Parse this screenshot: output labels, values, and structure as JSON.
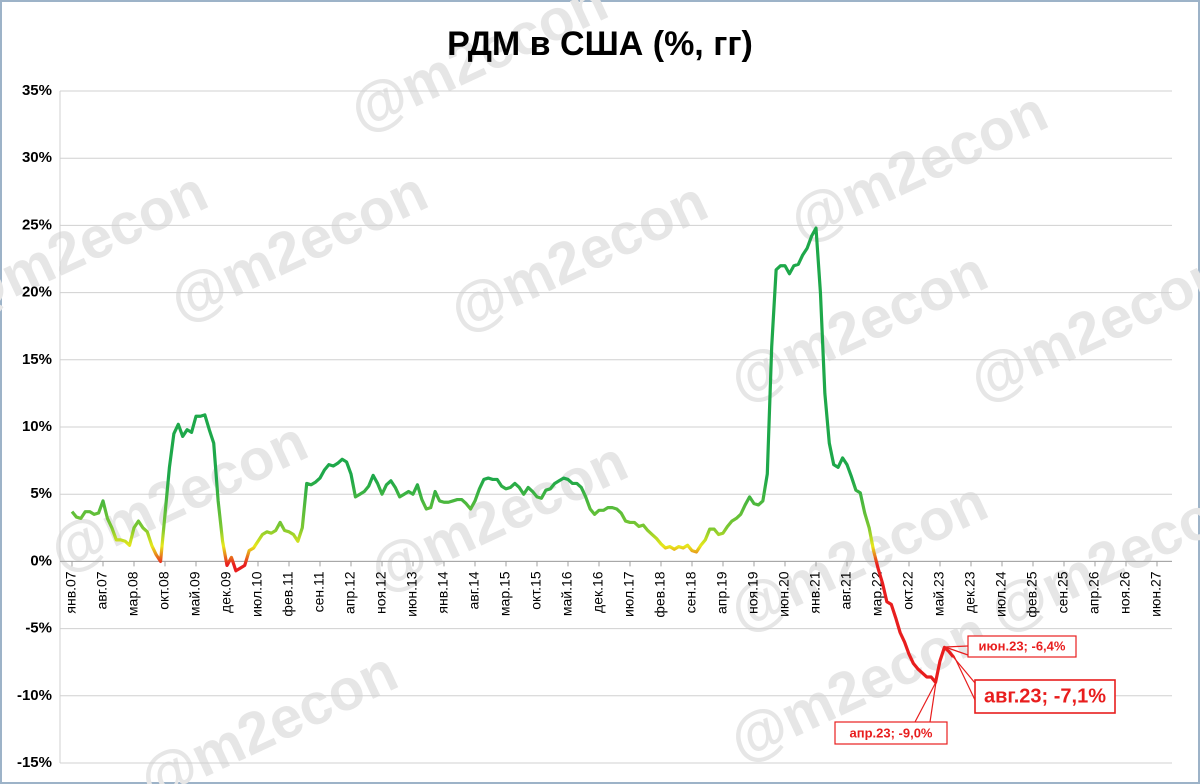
{
  "chart_data": {
    "type": "line",
    "title": "РДМ в США (%, гг)",
    "watermark": "@m2econ",
    "categories": [
      "янв.07",
      null,
      null,
      null,
      null,
      null,
      null,
      "авг.07",
      null,
      null,
      null,
      null,
      null,
      null,
      "мар.08",
      null,
      null,
      null,
      null,
      null,
      null,
      "окт.08",
      null,
      null,
      null,
      null,
      null,
      null,
      "май.09",
      null,
      null,
      null,
      null,
      null,
      null,
      "дек.09",
      null,
      null,
      null,
      null,
      null,
      null,
      "июл.10",
      null,
      null,
      null,
      null,
      null,
      null,
      "фев.11",
      null,
      null,
      null,
      null,
      null,
      null,
      "сен.11",
      null,
      null,
      null,
      null,
      null,
      null,
      "апр.12",
      null,
      null,
      null,
      null,
      null,
      null,
      "ноя.12",
      null,
      null,
      null,
      null,
      null,
      null,
      "июн.13",
      null,
      null,
      null,
      null,
      null,
      null,
      "янв.14",
      null,
      null,
      null,
      null,
      null,
      null,
      "авг.14",
      null,
      null,
      null,
      null,
      null,
      null,
      "мар.15",
      null,
      null,
      null,
      null,
      null,
      null,
      "окт.15",
      null,
      null,
      null,
      null,
      null,
      null,
      "май.16",
      null,
      null,
      null,
      null,
      null,
      null,
      "дек.16",
      null,
      null,
      null,
      null,
      null,
      null,
      "июл.17",
      null,
      null,
      null,
      null,
      null,
      null,
      "фев.18",
      null,
      null,
      null,
      null,
      null,
      null,
      "сен.18",
      null,
      null,
      null,
      null,
      null,
      null,
      "апр.19",
      null,
      null,
      null,
      null,
      null,
      null,
      "ноя.19",
      null,
      null,
      null,
      null,
      null,
      null,
      "июн.20",
      null,
      null,
      null,
      null,
      null,
      null,
      "янв.21",
      null,
      null,
      null,
      null,
      null,
      null,
      "авг.21",
      null,
      null,
      null,
      null,
      null,
      null,
      "мар.22",
      null,
      null,
      null,
      null,
      null,
      null,
      "окт.22",
      null,
      null,
      null,
      null,
      null,
      null,
      "май.23",
      null,
      null,
      null,
      null,
      null,
      null,
      "дек.23",
      null,
      null,
      null,
      null,
      null,
      null,
      "июл.24",
      null,
      null,
      null,
      null,
      null,
      null,
      "фев.25",
      null,
      null,
      null,
      null,
      null,
      null,
      "сен.25",
      null,
      null,
      null,
      null,
      null,
      null,
      "апр.26",
      null,
      null,
      null,
      null,
      null,
      null,
      "ноя.26",
      null,
      null,
      null,
      null,
      null,
      null,
      "июн.27"
    ],
    "values": [
      3.7,
      3.3,
      3.2,
      3.7,
      3.7,
      3.5,
      3.6,
      4.5,
      3.2,
      2.5,
      1.6,
      1.6,
      1.5,
      1.2,
      2.5,
      3.0,
      2.5,
      2.2,
      1.2,
      0.5,
      0.0,
      3.5,
      7.0,
      9.5,
      10.2,
      9.3,
      9.8,
      9.6,
      10.8,
      10.8,
      10.9,
      9.8,
      8.8,
      4.5,
      1.5,
      -0.3,
      0.3,
      -0.7,
      -0.5,
      -0.3,
      0.8,
      1.0,
      1.5,
      2.0,
      2.2,
      2.1,
      2.3,
      2.9,
      2.3,
      2.2,
      2.0,
      1.5,
      2.5,
      5.8,
      5.7,
      5.9,
      6.2,
      6.8,
      7.2,
      7.1,
      7.3,
      7.6,
      7.4,
      6.5,
      4.8,
      5.0,
      5.2,
      5.6,
      6.4,
      5.8,
      5.0,
      5.7,
      6.0,
      5.5,
      4.8,
      5.0,
      5.2,
      5.0,
      5.7,
      4.6,
      3.9,
      4.0,
      5.2,
      4.5,
      4.4,
      4.4,
      4.5,
      4.6,
      4.6,
      4.3,
      3.9,
      4.5,
      5.4,
      6.1,
      6.2,
      6.1,
      6.1,
      5.6,
      5.4,
      5.5,
      5.8,
      5.5,
      5.0,
      5.5,
      5.2,
      4.8,
      4.7,
      5.3,
      5.4,
      5.8,
      6.0,
      6.2,
      6.1,
      5.8,
      5.8,
      5.5,
      4.8,
      3.9,
      3.5,
      3.8,
      3.8,
      4.0,
      4.0,
      3.9,
      3.6,
      3.0,
      2.9,
      2.9,
      2.6,
      2.7,
      2.3,
      2.0,
      1.7,
      1.3,
      1.0,
      1.1,
      0.9,
      1.1,
      1.0,
      1.2,
      0.8,
      0.7,
      1.2,
      1.6,
      2.4,
      2.4,
      2.0,
      2.1,
      2.6,
      3.0,
      3.2,
      3.5,
      4.2,
      4.8,
      4.3,
      4.2,
      4.5,
      6.5,
      16.0,
      21.7,
      22.0,
      22.0,
      21.4,
      22.0,
      22.1,
      22.8,
      23.3,
      24.2,
      24.8,
      20.0,
      12.5,
      8.8,
      7.2,
      7.0,
      7.7,
      7.2,
      6.3,
      5.3,
      5.1,
      3.6,
      2.5,
      0.8,
      -0.5,
      -1.6,
      -3.0,
      -3.2,
      -4.2,
      -5.3,
      -6.0,
      -6.9,
      -7.6,
      -8.0,
      -8.3,
      -8.6,
      -8.6,
      -9.0,
      -7.4,
      -6.4,
      -6.7,
      -7.1,
      null,
      null,
      null,
      null,
      null,
      null,
      null,
      null,
      null,
      null,
      null,
      null,
      null,
      null,
      null,
      null,
      null,
      null,
      null,
      null,
      null,
      null,
      null,
      null,
      null,
      null,
      null,
      null,
      null,
      null,
      null,
      null,
      null,
      null,
      null,
      null,
      null,
      null,
      null,
      null,
      null,
      null,
      null,
      null,
      null,
      null
    ],
    "colors": [
      "#1ea84a",
      "#7cc832",
      "#e8e81a",
      "#e81e1e"
    ],
    "ylim": [
      -15,
      35
    ],
    "yticks": [
      {
        "value": -15,
        "label": "-15%"
      },
      {
        "value": -10,
        "label": "-10%"
      },
      {
        "value": -5,
        "label": "-5%"
      },
      {
        "value": 0,
        "label": "0%"
      },
      {
        "value": 5,
        "label": "5%"
      },
      {
        "value": 10,
        "label": "10%"
      },
      {
        "value": 15,
        "label": "15%"
      },
      {
        "value": 20,
        "label": "20%"
      },
      {
        "value": 25,
        "label": "25%"
      },
      {
        "value": 30,
        "label": "30%"
      },
      {
        "value": 35,
        "label": "35%"
      }
    ],
    "grid": true,
    "annotations": [
      "апр.23; -9,0%",
      "июн.23; -6,4%",
      "авг.23; -7,1%"
    ]
  }
}
